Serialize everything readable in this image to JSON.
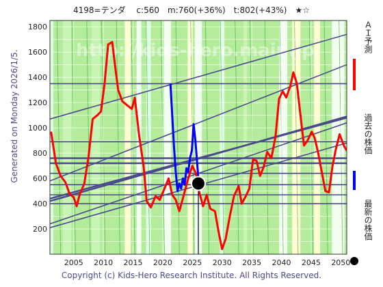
{
  "header": {
    "title": "4198=テンダ　 c:560　m:760(+36%)　t:802(+43%)　★☆"
  },
  "side_note": "Generated on Monday 2026/1/5.",
  "copyright": "Copyright (c) Kids-Hero Research Institute. All Rights Reserved.",
  "watermark": "http://kids-hero.main.jp/",
  "legend": {
    "ai_forecast": {
      "label": "ＡＩ予測",
      "color": "#ff0000"
    },
    "past_price": {
      "label": "過去の株価",
      "color": "#0000ff"
    },
    "latest_price": {
      "label": "最新の株価",
      "color": "#000000"
    }
  },
  "chart_data": {
    "type": "line",
    "xlim": [
      2001,
      2051
    ],
    "ylim": [
      0,
      1850
    ],
    "x_ticks": [
      2005,
      2010,
      2015,
      2020,
      2025,
      2030,
      2035,
      2040,
      2045,
      2050
    ],
    "y_ticks": [
      200,
      400,
      600,
      800,
      1000,
      1200,
      1400,
      1600,
      1800
    ],
    "grid": true,
    "latest_point": {
      "x": 2026.0,
      "y": 560
    },
    "horizontal_levels": [
      1350,
      890,
      760,
      720,
      640,
      550,
      470,
      400
    ],
    "trend_lines": [
      {
        "x": [
          2001,
          2051
        ],
        "y": [
          1070,
          1740
        ]
      },
      {
        "x": [
          2001,
          2051
        ],
        "y": [
          580,
          1500
        ]
      },
      {
        "x": [
          2001,
          2051
        ],
        "y": [
          420,
          1090
        ]
      },
      {
        "x": [
          2001,
          2051
        ],
        "y": [
          440,
          1080
        ]
      },
      {
        "x": [
          2001,
          2051
        ],
        "y": [
          240,
          1040
        ]
      },
      {
        "x": [
          2001,
          2051
        ],
        "y": [
          210,
          880
        ]
      }
    ],
    "series": [
      {
        "color": "#ff0000",
        "x": [
          2001.2,
          2002,
          2002.8,
          2003.6,
          2004.3,
          2005,
          2005.5,
          2006,
          2006.8,
          2007.5,
          2008.2,
          2009,
          2009.6,
          2010.2,
          2010.8,
          2011.5,
          2012,
          2012.5,
          2013.2,
          2014,
          2014.8,
          2015.3,
          2016,
          2016.8,
          2017.3,
          2018,
          2018.8,
          2019.5,
          2020.3,
          2021,
          2021.6,
          2022.2,
          2022.8,
          2023.5,
          2024.3,
          2025,
          2025.6,
          2026,
          2026.8,
          2027.4,
          2028,
          2028.8,
          2029.4,
          2030,
          2030.6,
          2031.3,
          2032,
          2032.8,
          2033.3,
          2034,
          2034.6,
          2035.2,
          2035.8,
          2036.4,
          2037,
          2037.6,
          2038.3,
          2039,
          2039.6,
          2040.2,
          2040.8,
          2041.5,
          2042,
          2042.6,
          2043.2,
          2043.8,
          2044.4,
          2045.1,
          2045.6,
          2046.2,
          2046.8,
          2047.4,
          2048,
          2048.6,
          2049.2,
          2049.8,
          2050.5,
          2051
        ],
        "y": [
          970,
          720,
          620,
          570,
          480,
          450,
          380,
          470,
          560,
          770,
          1070,
          1100,
          1130,
          1350,
          1660,
          1680,
          1480,
          1300,
          1210,
          1180,
          1150,
          1240,
          950,
          690,
          420,
          370,
          460,
          430,
          520,
          600,
          470,
          430,
          340,
          460,
          600,
          700,
          640,
          520,
          380,
          470,
          360,
          340,
          180,
          40,
          120,
          300,
          460,
          540,
          400,
          460,
          520,
          750,
          740,
          620,
          690,
          810,
          760,
          930,
          1230,
          1290,
          1240,
          1330,
          1440,
          1350,
          1100,
          860,
          900,
          970,
          920,
          800,
          650,
          500,
          490,
          700,
          840,
          950,
          860,
          820
        ]
      },
      {
        "color": "#0000ff",
        "x": [
          2021.3,
          2021.6,
          2021.9,
          2022.2,
          2022.5,
          2022.8,
          2023.1,
          2023.4,
          2023.7,
          2024,
          2024.3,
          2024.6,
          2024.9,
          2025.2,
          2025.5,
          2025.8,
          2026
        ],
        "y": [
          1350,
          1100,
          850,
          650,
          500,
          560,
          520,
          600,
          550,
          680,
          650,
          760,
          820,
          1030,
          900,
          720,
          600
        ]
      }
    ]
  }
}
